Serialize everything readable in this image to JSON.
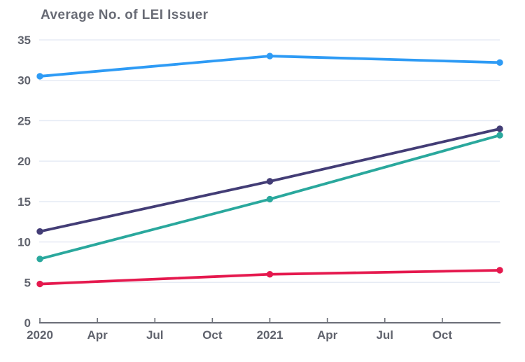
{
  "page": {
    "background_color": "#ffffff"
  },
  "chart_data": {
    "type": "line",
    "title": "Average No. of LEI Issuer",
    "xlabel": "",
    "ylabel": "",
    "x_tick_labels": [
      "2020",
      "Apr",
      "Jul",
      "Oct",
      "2021",
      "Apr",
      "Jul",
      "Oct"
    ],
    "x_points": [
      "Jan 2020",
      "Jan 2021",
      "Dec 2021"
    ],
    "x_point_tick_positions": [
      0,
      4,
      8
    ],
    "y_ticks": [
      0,
      5,
      10,
      15,
      20,
      25,
      30,
      35
    ],
    "ylim": [
      0,
      35
    ],
    "grid": "horizontal-only",
    "legend": "none",
    "series": [
      {
        "name": "blue-line",
        "color": "#2E9BF5",
        "values": [
          30.5,
          33.0,
          32.2
        ]
      },
      {
        "name": "purple-line",
        "color": "#433D76",
        "values": [
          11.3,
          17.5,
          24.0
        ]
      },
      {
        "name": "teal-line",
        "color": "#2AA89D",
        "values": [
          7.9,
          15.3,
          23.2
        ]
      },
      {
        "name": "red-line",
        "color": "#E5194E",
        "values": [
          4.8,
          6.0,
          6.5
        ]
      }
    ],
    "colors": {
      "gridline": "#E2E8F3",
      "axis_line": "#6B6E77",
      "tick_label": "#60636D",
      "title": "#686b75"
    }
  }
}
